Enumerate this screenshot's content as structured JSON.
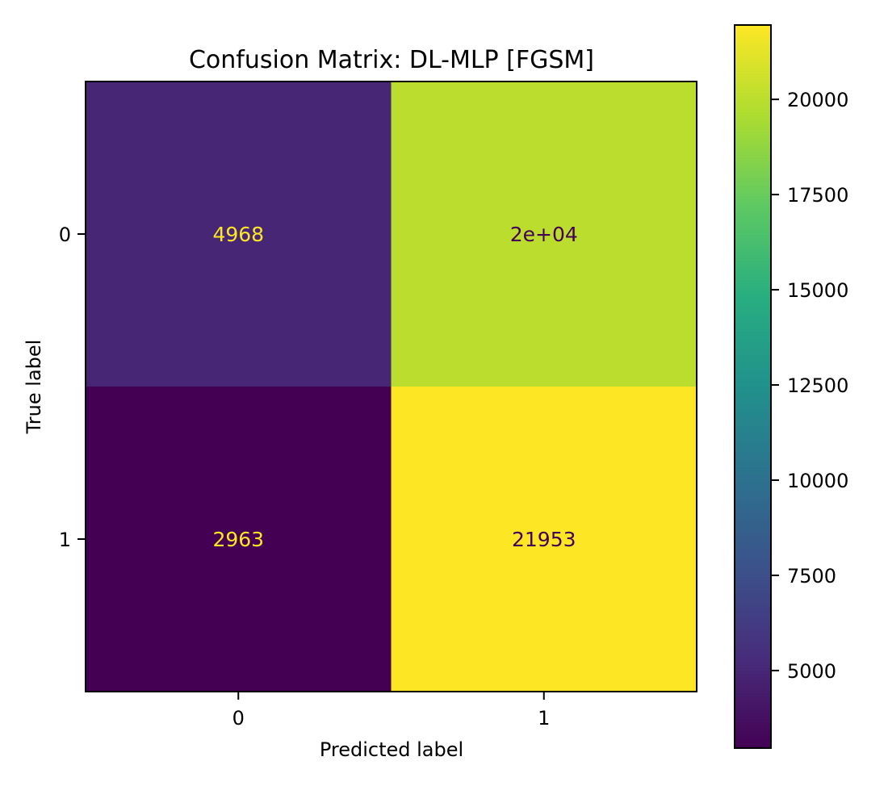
{
  "chart_data": {
    "type": "heatmap",
    "title": "Confusion Matrix: DL-MLP [FGSM]",
    "xlabel": "Predicted label",
    "ylabel": "True label",
    "x_categories": [
      "0",
      "1"
    ],
    "y_categories": [
      "0",
      "1"
    ],
    "values": [
      [
        4968,
        20000
      ],
      [
        2963,
        21953
      ]
    ],
    "cell_labels": [
      [
        "4968",
        "2e+04"
      ],
      [
        "2963",
        "21953"
      ]
    ],
    "colormap": "viridis",
    "color_range": [
      2963,
      21953
    ],
    "colorbar_ticks": [
      5000,
      7500,
      10000,
      12500,
      15000,
      17500,
      20000
    ],
    "colorbar_tick_labels": [
      "5000",
      "7500",
      "10000",
      "12500",
      "15000",
      "17500",
      "20000"
    ],
    "text_colors": {
      "dark_cell": "#fde725",
      "light_cell": "#440154"
    }
  }
}
